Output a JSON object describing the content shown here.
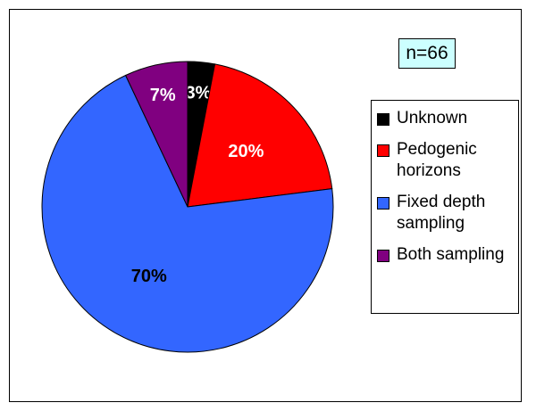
{
  "chart_data": {
    "type": "pie",
    "annotation": "n=66",
    "categories": [
      "Unknown",
      "Pedogenic horizons",
      "Fixed depth sampling",
      "Both sampling"
    ],
    "values": [
      3,
      20,
      70,
      7
    ],
    "value_labels": [
      "3%",
      "20%",
      "70%",
      "7%"
    ],
    "colors": [
      "#000000",
      "#ff0000",
      "#3366ff",
      "#800080"
    ],
    "legend": "right"
  }
}
